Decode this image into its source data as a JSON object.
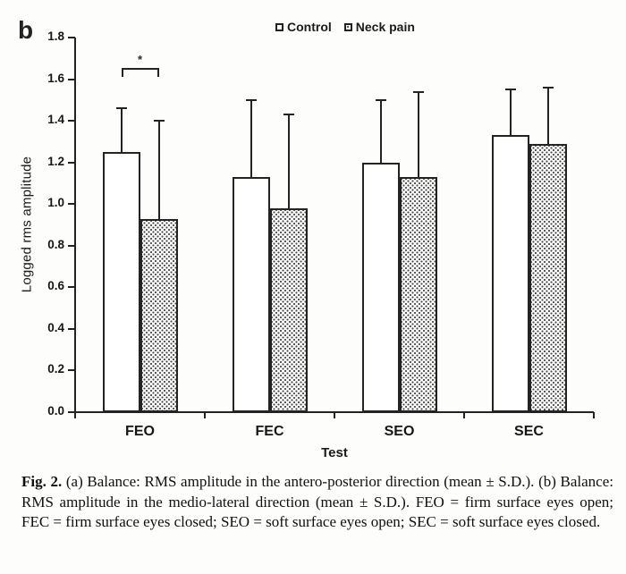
{
  "panel_label": "b",
  "legend": {
    "items": [
      {
        "label": "Control",
        "pattern": "plain"
      },
      {
        "label": "Neck pain",
        "pattern": "dotted"
      }
    ]
  },
  "chart_data": {
    "type": "bar",
    "title": "",
    "xlabel": "Test",
    "ylabel": "Logged rms amplitude",
    "ylim": [
      0.0,
      1.8
    ],
    "ytick_step": 0.2,
    "grid": false,
    "legend_position": "top-center",
    "error_bars": "upper S.D. only",
    "categories": [
      "FEO",
      "FEC",
      "SEO",
      "SEC"
    ],
    "series": [
      {
        "name": "Control",
        "pattern": "plain",
        "values": [
          1.25,
          1.13,
          1.2,
          1.33
        ],
        "sd_upper": [
          0.21,
          0.37,
          0.3,
          0.22
        ]
      },
      {
        "name": "Neck pain",
        "pattern": "dotted",
        "values": [
          0.93,
          0.98,
          1.13,
          1.29
        ],
        "sd_upper": [
          0.47,
          0.45,
          0.41,
          0.27
        ]
      }
    ],
    "annotations": [
      {
        "type": "significance-bracket",
        "category": "FEO",
        "label": "*",
        "y": 1.655
      }
    ]
  },
  "caption": {
    "prefix": "Fig. 2.",
    "body": " (a) Balance: RMS amplitude in the antero-posterior direction (mean ± S.D.). (b) Balance: RMS amplitude in the medio-lateral direction (mean ± S.D.). FEO = firm surface eyes open; FEC = firm surface eyes closed; SEO = soft surface eyes open; SEC = soft surface eyes closed."
  }
}
